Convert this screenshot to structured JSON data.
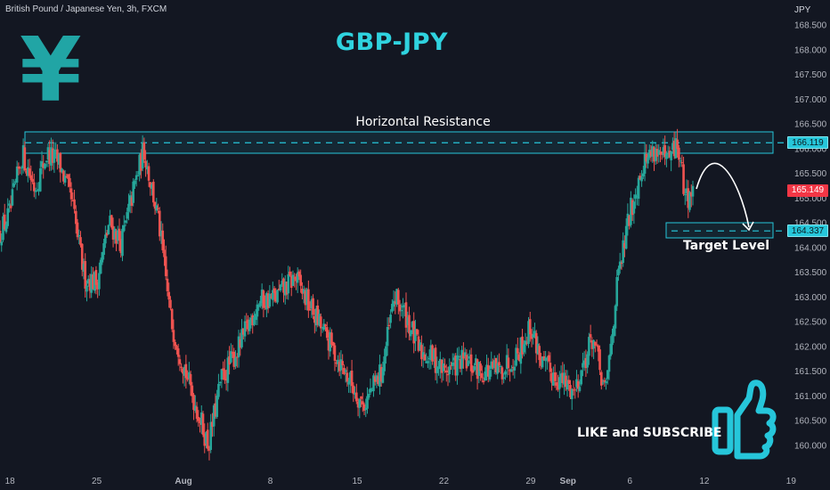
{
  "header": {
    "instrument": "British Pound / Japanese Yen, 3h, FXCM",
    "currency": "JPY",
    "title": "GBP-JPY"
  },
  "annotations": {
    "resistance_label": "Horizontal Resistance",
    "target_label": "Target Level",
    "cta": "LIKE and SUBSCRIBE",
    "yen_symbol": "¥"
  },
  "price_tags": {
    "resistance": "166.119",
    "last": "165.149",
    "target": "164.337"
  },
  "colors": {
    "background": "#131722",
    "up": "#26a69a",
    "down": "#ef5350",
    "accent": "#26c6da",
    "title": "#2fd3df"
  },
  "icons": [
    "yen-icon",
    "thumbs-up-icon",
    "arrow-icon"
  ],
  "chart_data": {
    "type": "candlestick",
    "y_axis": {
      "range": [
        159.7,
        168.9
      ],
      "ticks": [
        "160.000",
        "160.500",
        "161.000",
        "161.500",
        "162.000",
        "162.500",
        "163.000",
        "163.500",
        "164.000",
        "164.500",
        "165.000",
        "165.500",
        "166.000",
        "166.500",
        "167.000",
        "167.500",
        "168.000",
        "168.500"
      ]
    },
    "x_axis": {
      "range": [
        17.2,
        80.4
      ],
      "ticks": [
        {
          "label": "18",
          "day": 18
        },
        {
          "label": "25",
          "day": 25
        },
        {
          "label": "Aug",
          "day": 32
        },
        {
          "label": "8",
          "day": 39
        },
        {
          "label": "15",
          "day": 46
        },
        {
          "label": "22",
          "day": 53
        },
        {
          "label": "29",
          "day": 60
        },
        {
          "label": "Sep",
          "day": 63
        },
        {
          "label": "6",
          "day": 68
        },
        {
          "label": "12",
          "day": 74
        },
        {
          "label": "19",
          "day": 81
        }
      ]
    },
    "series": [
      {
        "name": "GBP/JPY",
        "close": [
          {
            "day": 17.2,
            "close": 164.3
          },
          {
            "day": 18.0,
            "close": 164.7
          },
          {
            "day": 19.0,
            "close": 165.9
          },
          {
            "day": 20.0,
            "close": 165.2
          },
          {
            "day": 21.0,
            "close": 165.9
          },
          {
            "day": 22.0,
            "close": 165.7
          },
          {
            "day": 23.0,
            "close": 164.9
          },
          {
            "day": 24.0,
            "close": 163.4
          },
          {
            "day": 25.0,
            "close": 163.3
          },
          {
            "day": 26.0,
            "close": 164.5
          },
          {
            "day": 27.0,
            "close": 164.1
          },
          {
            "day": 28.0,
            "close": 165.2
          },
          {
            "day": 28.8,
            "close": 166.0
          },
          {
            "day": 30.0,
            "close": 164.5
          },
          {
            "day": 31.0,
            "close": 162.5
          },
          {
            "day": 32.5,
            "close": 161.2
          },
          {
            "day": 34.0,
            "close": 160.0
          },
          {
            "day": 35.0,
            "close": 161.3
          },
          {
            "day": 36.5,
            "close": 162.0
          },
          {
            "day": 38.0,
            "close": 162.9
          },
          {
            "day": 39.5,
            "close": 163.0
          },
          {
            "day": 41.0,
            "close": 163.4
          },
          {
            "day": 42.0,
            "close": 162.9
          },
          {
            "day": 43.5,
            "close": 162.2
          },
          {
            "day": 45.0,
            "close": 161.5
          },
          {
            "day": 46.5,
            "close": 160.8
          },
          {
            "day": 48.0,
            "close": 161.5
          },
          {
            "day": 49.0,
            "close": 163.0
          },
          {
            "day": 50.0,
            "close": 162.6
          },
          {
            "day": 51.0,
            "close": 161.9
          },
          {
            "day": 52.0,
            "close": 161.8
          },
          {
            "day": 53.0,
            "close": 161.5
          },
          {
            "day": 54.5,
            "close": 161.7
          },
          {
            "day": 56.0,
            "close": 161.5
          },
          {
            "day": 57.5,
            "close": 161.5
          },
          {
            "day": 59.0,
            "close": 161.9
          },
          {
            "day": 60.0,
            "close": 162.4
          },
          {
            "day": 61.0,
            "close": 161.6
          },
          {
            "day": 62.0,
            "close": 161.4
          },
          {
            "day": 63.5,
            "close": 161.1
          },
          {
            "day": 65.0,
            "close": 162.2
          },
          {
            "day": 66.0,
            "close": 161.0
          },
          {
            "day": 67.0,
            "close": 163.3
          },
          {
            "day": 68.0,
            "close": 164.7
          },
          {
            "day": 69.0,
            "close": 165.7
          },
          {
            "day": 70.0,
            "close": 166.0
          },
          {
            "day": 71.0,
            "close": 165.7
          },
          {
            "day": 71.8,
            "close": 166.1
          },
          {
            "day": 72.5,
            "close": 165.0
          },
          {
            "day": 73.1,
            "close": 165.149
          }
        ]
      }
    ],
    "levels": {
      "resistance": 166.119,
      "target": 164.337,
      "last": 165.149
    }
  }
}
